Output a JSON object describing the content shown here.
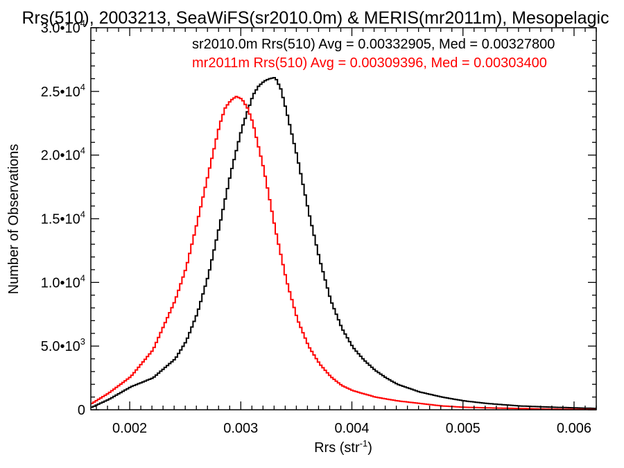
{
  "chart_data": {
    "type": "line",
    "title": "Rrs(510), 2003213, SeaWiFS(sr2010.0m) & MERIS(mr2011m), Mesopelagic",
    "xlabel": "Rrs (str",
    "xlabel_sup": "-1",
    "xlabel_end": ")",
    "ylabel": "Number of Observations",
    "xlim": [
      0.00165,
      0.0062
    ],
    "ylim": [
      0,
      30000
    ],
    "x_ticks": [
      {
        "value": 0.002,
        "label": "0.002"
      },
      {
        "value": 0.003,
        "label": "0.003"
      },
      {
        "value": 0.004,
        "label": "0.004"
      },
      {
        "value": 0.005,
        "label": "0.005"
      },
      {
        "value": 0.006,
        "label": "0.006"
      }
    ],
    "y_ticks": [
      {
        "value": 0,
        "mantissa": "0",
        "exp": ""
      },
      {
        "value": 5000,
        "mantissa": "5.0•10",
        "exp": "3"
      },
      {
        "value": 10000,
        "mantissa": "1.0•10",
        "exp": "4"
      },
      {
        "value": 15000,
        "mantissa": "1.5•10",
        "exp": "4"
      },
      {
        "value": 20000,
        "mantissa": "2.0•10",
        "exp": "4"
      },
      {
        "value": 25000,
        "mantissa": "2.5•10",
        "exp": "4"
      },
      {
        "value": 30000,
        "mantissa": "3.0•10",
        "exp": "4"
      }
    ],
    "series": [
      {
        "name": "sr2010.0m",
        "color": "#000000",
        "annotation": "sr2010.0m Rrs(510) Avg = 0.00332905, Med = 0.00327800",
        "x": [
          0.00165,
          0.0018,
          0.002,
          0.0022,
          0.0024,
          0.0025,
          0.0026,
          0.0027,
          0.0028,
          0.0029,
          0.003,
          0.0031,
          0.00315,
          0.0032,
          0.00325,
          0.0033,
          0.00335,
          0.0034,
          0.0035,
          0.0036,
          0.0037,
          0.0038,
          0.0039,
          0.004,
          0.0041,
          0.0042,
          0.0043,
          0.0044,
          0.0045,
          0.0046,
          0.0048,
          0.005,
          0.0052,
          0.0055,
          0.0058,
          0.0062
        ],
        "y": [
          200,
          800,
          1800,
          2500,
          4000,
          5400,
          7600,
          10600,
          14500,
          18600,
          22100,
          24700,
          25400,
          25800,
          26000,
          26100,
          25200,
          23500,
          19800,
          15600,
          11800,
          8600,
          6400,
          4900,
          3900,
          3100,
          2500,
          2000,
          1700,
          1400,
          1000,
          700,
          500,
          300,
          200,
          100
        ]
      },
      {
        "name": "mr2011m",
        "color": "#ff0000",
        "annotation": "mr2011m Rrs(510) Avg = 0.00309396, Med = 0.00303400",
        "x": [
          0.00165,
          0.0018,
          0.002,
          0.0022,
          0.0024,
          0.0025,
          0.0026,
          0.0027,
          0.0028,
          0.00285,
          0.0029,
          0.00295,
          0.003,
          0.00305,
          0.0031,
          0.0032,
          0.0033,
          0.0034,
          0.0035,
          0.0036,
          0.0037,
          0.0038,
          0.0039,
          0.004,
          0.0042,
          0.0044,
          0.0046,
          0.0048,
          0.005,
          0.0052,
          0.0055,
          0.0058,
          0.0062
        ],
        "y": [
          500,
          1300,
          2600,
          4700,
          8600,
          11200,
          14800,
          18600,
          22400,
          23700,
          24300,
          24600,
          24400,
          23700,
          22500,
          18800,
          14200,
          10200,
          7100,
          5000,
          3600,
          2600,
          1900,
          1500,
          1000,
          700,
          500,
          300,
          200,
          150,
          100,
          50,
          20
        ]
      }
    ]
  }
}
